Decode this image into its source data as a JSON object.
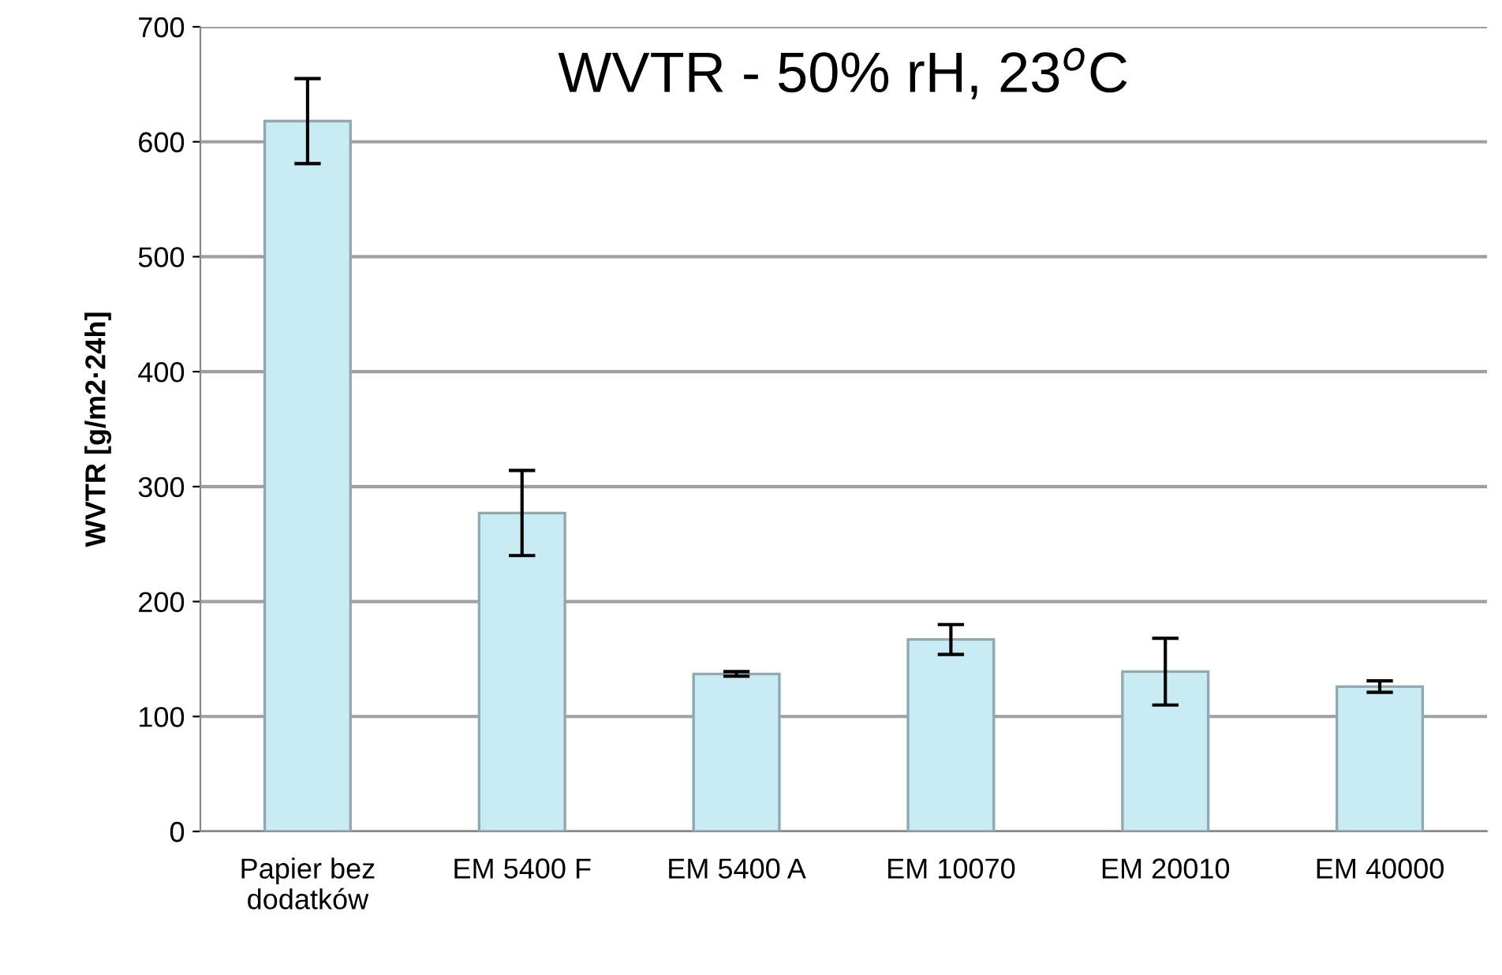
{
  "chart_data": {
    "type": "bar",
    "title": "WVTR - 50% rH, 23$^{o}$C",
    "ylabel": "WVTR [g/m2·24h]",
    "categories": [
      "Papier bez\ndodatków",
      "EM 5400 F",
      "EM 5400 A",
      "EM 10070",
      "EM 20010",
      "EM 40000"
    ],
    "values": [
      618,
      277,
      137,
      167,
      139,
      126
    ],
    "errors": [
      37,
      37,
      2,
      13,
      29,
      5
    ],
    "color": "#c9ecf4",
    "ylim": [
      0,
      700
    ],
    "yticks": [
      0,
      100,
      200,
      300,
      400,
      500,
      600,
      700
    ],
    "grid": "y",
    "legend": false
  }
}
